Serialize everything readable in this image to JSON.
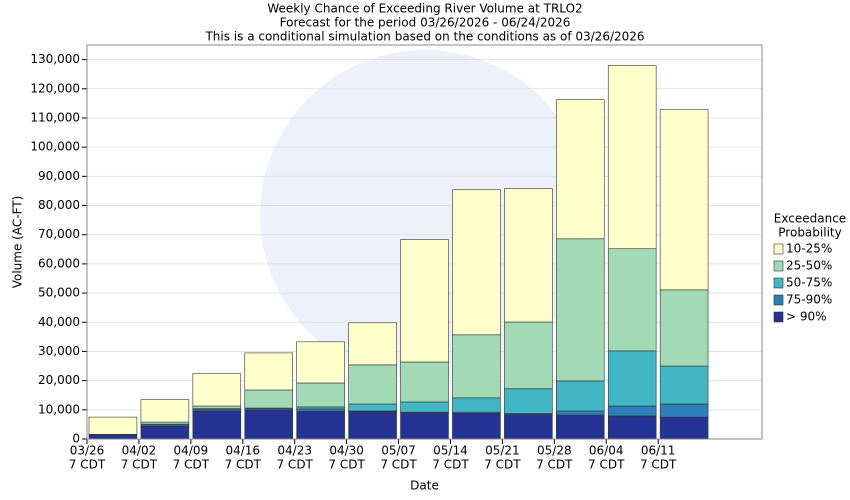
{
  "chart_data": {
    "type": "stacked_bar",
    "title": [
      "Weekly Chance of Exceeding River Volume at TRLO2",
      "Forecast for the period 03/26/2026 - 06/24/2026",
      "This is a conditional simulation based on the conditions as of 03/26/2026"
    ],
    "x_label": "Date",
    "y_label": "Volume (AC-FT)",
    "categories": [
      "03/26",
      "04/02",
      "04/09",
      "04/16",
      "04/23",
      "04/30",
      "05/07",
      "05/14",
      "05/21",
      "05/28",
      "06/04",
      "06/11",
      null
    ],
    "category_sublabels": [
      "7 CDT",
      "7 CDT",
      "7 CDT",
      "7 CDT",
      "7 CDT",
      "7 CDT",
      "7 CDT",
      "7 CDT",
      "7 CDT",
      "7 CDT",
      "7 CDT",
      "7 CDT",
      null
    ],
    "legend_title": [
      "Exceedance",
      "Probability"
    ],
    "legend_position": "right",
    "series": [
      {
        "name": "10-25%",
        "color": "#ffffcc",
        "values": [
          5900,
          7700,
          11100,
          12700,
          14100,
          14400,
          41900,
          49700,
          45700,
          47700,
          62800,
          61800,
          0
        ]
      },
      {
        "name": "25-50%",
        "color": "#a1dab4",
        "values": [
          0,
          700,
          900,
          6200,
          8200,
          13400,
          13700,
          21600,
          22900,
          48700,
          35000,
          26100,
          0
        ]
      },
      {
        "name": "50-75%",
        "color": "#41b6c4",
        "values": [
          0,
          300,
          300,
          300,
          700,
          2400,
          3500,
          4900,
          8500,
          10300,
          18900,
          13000,
          0
        ]
      },
      {
        "name": "75-90%",
        "color": "#2c7fb8",
        "values": [
          200,
          500,
          500,
          400,
          800,
          300,
          300,
          400,
          200,
          1400,
          3400,
          4500,
          0
        ]
      },
      {
        "name": "> 90%",
        "color": "#253494",
        "values": [
          1400,
          4300,
          9600,
          9900,
          9500,
          9300,
          8900,
          8800,
          8500,
          8200,
          7900,
          7500,
          0
        ]
      }
    ],
    "ylim": [
      0,
      135000
    ],
    "yticks": [
      0,
      {
        "value": 10000,
        "label": "10,000"
      },
      {
        "value": 20000,
        "label": "20,000"
      },
      {
        "value": 30000,
        "label": "30,000"
      },
      {
        "value": 40000,
        "label": "40,000"
      },
      {
        "value": 50000,
        "label": "50,000"
      },
      {
        "value": 60000,
        "label": "60,000"
      },
      {
        "value": 70000,
        "label": "70,000"
      },
      {
        "value": 80000,
        "label": "80,000"
      },
      {
        "value": 90000,
        "label": "90,000"
      },
      {
        "value": 100000,
        "label": "100,000"
      },
      {
        "value": 110000,
        "label": "110,000"
      },
      {
        "value": 120000,
        "label": "120,000"
      },
      {
        "value": 130000,
        "label": "130,000"
      }
    ],
    "grid": true
  }
}
